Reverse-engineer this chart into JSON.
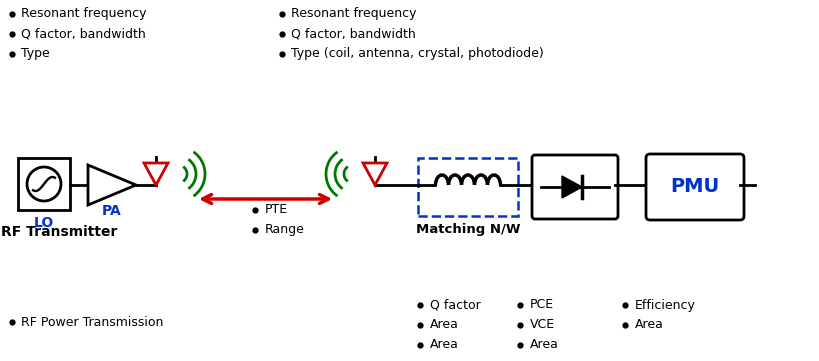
{
  "bg_color": "#ffffff",
  "text_color": "#000000",
  "blue_color": "#0033CC",
  "red_color": "#CC0000",
  "green_color": "#007700",
  "dashed_blue": "#0033CC",
  "bullet_left_col1": [
    "Resonant frequency",
    "Q factor, bandwidth",
    "Type"
  ],
  "bullet_right_col1": [
    "Resonant frequency",
    "Q factor, bandwidth",
    "Type (coil, antenna, crystal, photodiode)"
  ],
  "label_rf_transmitter": "RF Transmitter",
  "label_lo": "LO",
  "label_pa": "PA",
  "label_matching": "Matching N/W",
  "label_pmu": "PMU",
  "label_pte_range": [
    "PTE",
    "Range"
  ],
  "bullet_bottom_left": [
    "RF Power Transmission"
  ],
  "bullet_bottom_right_col1": [
    "Q factor",
    "Area",
    "Area"
  ],
  "bullet_bottom_right_col2": [
    "PCE",
    "VCE",
    "Area"
  ],
  "bullet_bottom_right_col3": [
    "Efficiency",
    "Area"
  ],
  "fig_w": 8.2,
  "fig_h": 3.61,
  "dpi": 100
}
